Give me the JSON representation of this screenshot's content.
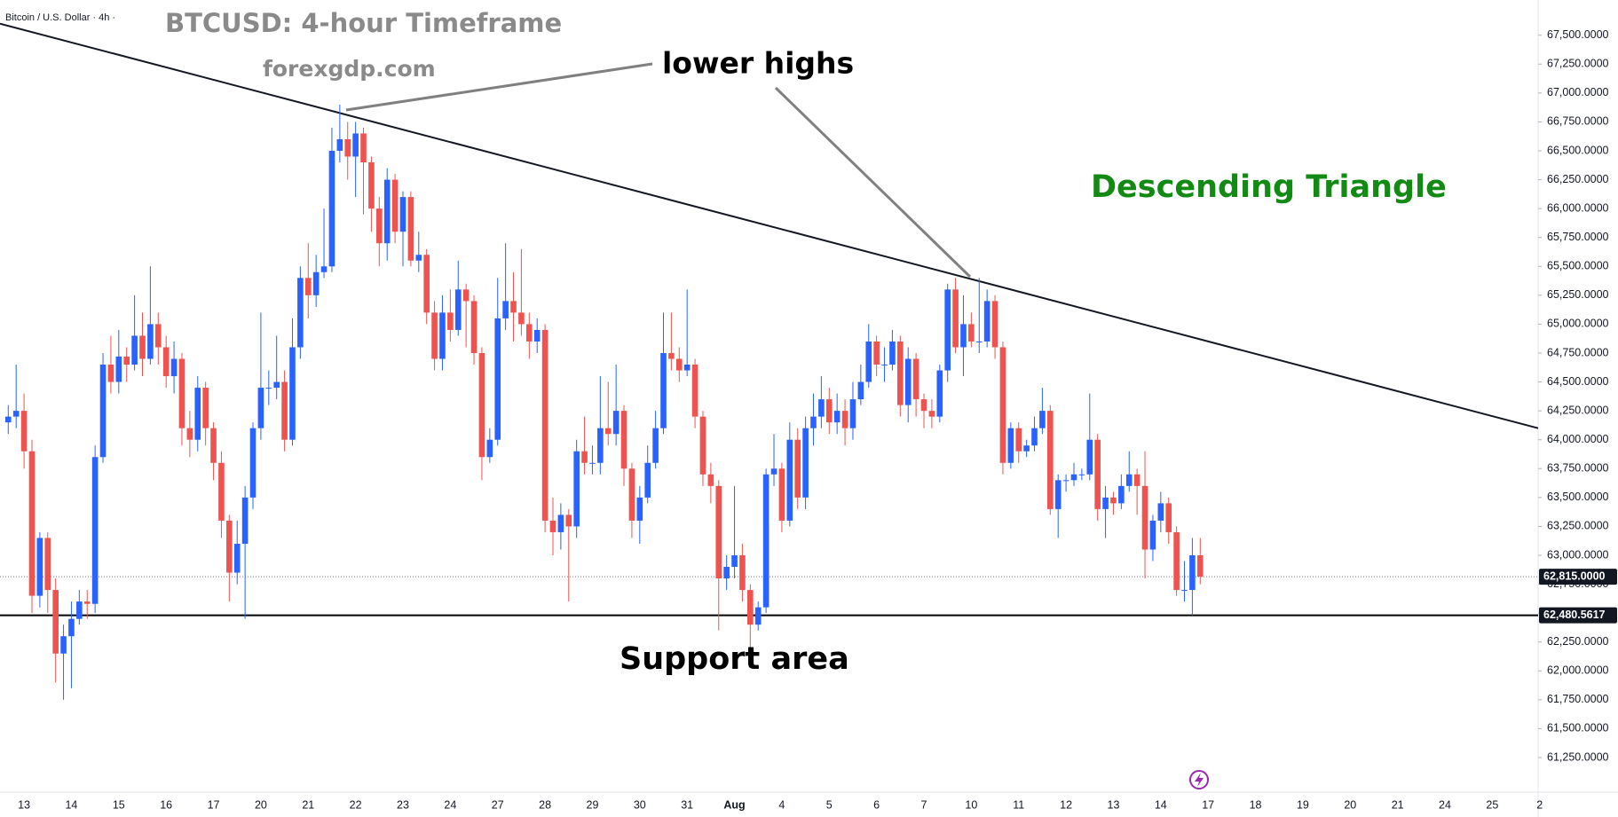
{
  "chart_data": {
    "type": "candlestick",
    "header": "Bitcoin / U.S. Dollar · 4h ·",
    "title": "BTCUSD: 4-hour Timeframe",
    "subtitle": "forexgdp.com",
    "annotations": {
      "lower_highs": "lower highs",
      "pattern": "Descending Triangle",
      "support": "Support area"
    },
    "up_color": "#2962ff",
    "down_color": "#ef5350",
    "open": [
      64150,
      64200,
      64250,
      63900,
      62650,
      63150,
      62700,
      62150,
      62300,
      62450,
      62600,
      62580,
      63850,
      64650,
      64500,
      64720,
      64650,
      64900,
      64700,
      65000,
      64800,
      64550,
      64700,
      64100,
      64000,
      64450,
      64100,
      63800,
      63300,
      62850,
      63100,
      63500,
      64100,
      64450,
      64450,
      64500,
      64000,
      64800,
      65400,
      65250,
      65450,
      65500,
      66500,
      66600,
      66450,
      66650,
      66400,
      66000,
      65700,
      66250,
      65800,
      66100,
      65550,
      65600,
      65100,
      64700,
      65100,
      64950,
      65300,
      65200,
      64750,
      63850,
      64000,
      65050,
      65200,
      65100,
      65000,
      64850,
      64950,
      63300,
      63200,
      63350,
      63250,
      63900,
      63800,
      63800,
      64100,
      64050,
      64250,
      63750,
      63300,
      63500,
      63800,
      64100,
      64750,
      64700,
      64600,
      64650,
      64200,
      63700,
      63600,
      62800,
      62900,
      63000,
      62700,
      62400,
      62550,
      63700,
      63750,
      63300,
      64000,
      63500,
      64100,
      64200,
      64350,
      64150,
      64250,
      64100,
      64350,
      64500,
      64850,
      64650,
      64650,
      64850,
      64300,
      64700,
      64350,
      64250,
      64200,
      64600,
      65300,
      64800,
      65000,
      64850,
      64850,
      65200,
      64800,
      63800,
      64100,
      63900,
      63950,
      64100,
      64250,
      63400,
      63650,
      63650,
      63700,
      63700,
      64000,
      63400,
      63500,
      63450,
      63600,
      63700,
      63600,
      63050,
      63300,
      63450,
      63200,
      62700,
      62700,
      63000
    ],
    "high": [
      64300,
      64650,
      64400,
      64000,
      63200,
      63200,
      62800,
      62400,
      62600,
      62700,
      62700,
      63950,
      64750,
      64900,
      64950,
      64800,
      65250,
      65100,
      65500,
      65100,
      64900,
      64850,
      64750,
      64250,
      64550,
      64500,
      64150,
      63900,
      63350,
      63300,
      63600,
      64150,
      65100,
      64600,
      64900,
      64600,
      65050,
      65500,
      65700,
      65600,
      66000,
      66700,
      66900,
      66750,
      66750,
      66700,
      66450,
      66100,
      66350,
      66300,
      66150,
      66150,
      65800,
      65650,
      65200,
      65250,
      65300,
      65550,
      65350,
      65250,
      64800,
      64100,
      65400,
      65700,
      65450,
      65650,
      65100,
      65050,
      65000,
      63500,
      63450,
      63400,
      64000,
      64200,
      63950,
      64550,
      64500,
      64650,
      64300,
      63800,
      63600,
      63950,
      64250,
      65100,
      65100,
      64800,
      65300,
      64700,
      64250,
      63800,
      63650,
      63000,
      63600,
      63100,
      62750,
      62600,
      63750,
      64050,
      63800,
      64150,
      64100,
      64200,
      64400,
      64550,
      64450,
      64400,
      64350,
      64500,
      64650,
      65000,
      64900,
      64800,
      64950,
      64900,
      64800,
      64750,
      64400,
      64350,
      64650,
      65350,
      65400,
      65250,
      65100,
      65400,
      65300,
      65250,
      64850,
      64150,
      64150,
      64000,
      64200,
      64450,
      64300,
      63700,
      63700,
      63800,
      63750,
      64400,
      64050,
      63600,
      63550,
      63700,
      63900,
      63750,
      63900,
      63350,
      63550,
      63500,
      63250,
      62950,
      63150,
      63150
    ],
    "low": [
      64050,
      64100,
      63750,
      62500,
      62550,
      62500,
      61900,
      61750,
      61850,
      62400,
      62450,
      62500,
      63800,
      64400,
      64400,
      64500,
      64600,
      64550,
      64650,
      64650,
      64450,
      64400,
      63950,
      63850,
      63900,
      63950,
      63650,
      63150,
      62600,
      62750,
      62450,
      63400,
      64000,
      64300,
      64350,
      63900,
      63950,
      64700,
      65050,
      65150,
      65400,
      65450,
      66400,
      66250,
      66100,
      65950,
      65800,
      65500,
      65550,
      65700,
      65500,
      65500,
      65450,
      65000,
      64600,
      64600,
      64850,
      64900,
      64800,
      64650,
      63650,
      63800,
      63950,
      64950,
      64850,
      64900,
      64700,
      64750,
      63200,
      63000,
      63050,
      62600,
      63150,
      63700,
      63700,
      63700,
      63950,
      63950,
      63600,
      63150,
      63100,
      63450,
      63750,
      64050,
      64600,
      64500,
      64550,
      64100,
      63600,
      63450,
      62350,
      62700,
      62800,
      62600,
      62200,
      62350,
      62500,
      63600,
      63200,
      63250,
      63400,
      63400,
      63950,
      64100,
      64050,
      64050,
      63950,
      64000,
      64300,
      64450,
      64550,
      64500,
      64600,
      64200,
      64150,
      64200,
      64100,
      64100,
      64150,
      64500,
      64750,
      64550,
      64800,
      64750,
      64800,
      64700,
      63700,
      63750,
      63800,
      63850,
      63900,
      64050,
      63350,
      63150,
      63550,
      63600,
      63650,
      63650,
      63300,
      63150,
      63350,
      63400,
      63550,
      63350,
      62800,
      62950,
      63200,
      63100,
      62650,
      62600,
      62480,
      62750
    ],
    "close": [
      64200,
      64250,
      63900,
      62650,
      63150,
      62700,
      62150,
      62300,
      62450,
      62600,
      62580,
      63850,
      64650,
      64500,
      64720,
      64650,
      64900,
      64700,
      65000,
      64800,
      64550,
      64700,
      64100,
      64000,
      64450,
      64100,
      63800,
      63300,
      62850,
      63100,
      63500,
      64100,
      64450,
      64450,
      64500,
      64000,
      64800,
      65400,
      65250,
      65450,
      65500,
      66500,
      66600,
      66450,
      66650,
      66400,
      66000,
      65700,
      66250,
      65800,
      66100,
      65550,
      65600,
      65100,
      64700,
      65100,
      64950,
      65300,
      65200,
      64750,
      63850,
      64000,
      65050,
      65200,
      65100,
      65000,
      64850,
      64950,
      63300,
      63200,
      63350,
      63250,
      63900,
      63800,
      63800,
      64100,
      64050,
      64250,
      63750,
      63300,
      63500,
      63800,
      64100,
      64750,
      64700,
      64600,
      64650,
      64200,
      63700,
      63600,
      62800,
      62900,
      63000,
      62700,
      62400,
      62550,
      63700,
      63750,
      63300,
      64000,
      63500,
      64100,
      64200,
      64350,
      64150,
      64250,
      64100,
      64350,
      64500,
      64850,
      64650,
      64650,
      64850,
      64300,
      64700,
      64350,
      64250,
      64200,
      64600,
      65300,
      64800,
      65000,
      64850,
      64850,
      65200,
      64800,
      63800,
      64100,
      63900,
      63950,
      64100,
      64250,
      63400,
      63650,
      63650,
      63700,
      63700,
      64000,
      63400,
      63500,
      63450,
      63600,
      63700,
      63600,
      63050,
      63300,
      63450,
      63200,
      62700,
      62700,
      63000,
      62815
    ],
    "x_labels": [
      "13",
      "14",
      "15",
      "16",
      "17",
      "20",
      "21",
      "22",
      "23",
      "24",
      "27",
      "28",
      "29",
      "30",
      "31",
      "Aug",
      "4",
      "5",
      "6",
      "7",
      "10",
      "11",
      "12",
      "13",
      "14",
      "17",
      "18",
      "19",
      "20",
      "21",
      "24",
      "25",
      "2"
    ],
    "ylim": [
      61250,
      67500
    ],
    "yticks": [
      {
        "value": 61250,
        "label": "61,250.0000"
      },
      {
        "value": 61500,
        "label": "61,500.0000"
      },
      {
        "value": 61750,
        "label": "61,750.0000"
      },
      {
        "value": 62000,
        "label": "62,000.0000"
      },
      {
        "value": 62250,
        "label": "62,250.0000"
      },
      {
        "value": 62500,
        "label": "62,500.0000"
      },
      {
        "value": 62750,
        "label": "62,750.0000"
      },
      {
        "value": 63000,
        "label": "63,000.0000"
      },
      {
        "value": 63250,
        "label": "63,250.0000"
      },
      {
        "value": 63500,
        "label": "63,500.0000"
      },
      {
        "value": 63750,
        "label": "63,750.0000"
      },
      {
        "value": 64000,
        "label": "64,000.0000"
      },
      {
        "value": 64250,
        "label": "64,250.0000"
      },
      {
        "value": 64500,
        "label": "64,500.0000"
      },
      {
        "value": 64750,
        "label": "64,750.0000"
      },
      {
        "value": 65000,
        "label": "65,000.0000"
      },
      {
        "value": 65250,
        "label": "65,250.0000"
      },
      {
        "value": 65500,
        "label": "65,500.0000"
      },
      {
        "value": 65750,
        "label": "65,750.0000"
      },
      {
        "value": 66000,
        "label": "66,000.0000"
      },
      {
        "value": 66250,
        "label": "66,250.0000"
      },
      {
        "value": 66500,
        "label": "66,500.0000"
      },
      {
        "value": 66750,
        "label": "66,750.0000"
      },
      {
        "value": 67000,
        "label": "67,000.0000"
      },
      {
        "value": 67250,
        "label": "67,250.0000"
      },
      {
        "value": 67500,
        "label": "67,500.0000"
      }
    ],
    "current_price": {
      "value": 62815,
      "label": "62,815.0000"
    },
    "support_line": {
      "value": 62480.5617,
      "label": "62,480.5617"
    },
    "trendline": [
      67600,
      64100
    ]
  }
}
